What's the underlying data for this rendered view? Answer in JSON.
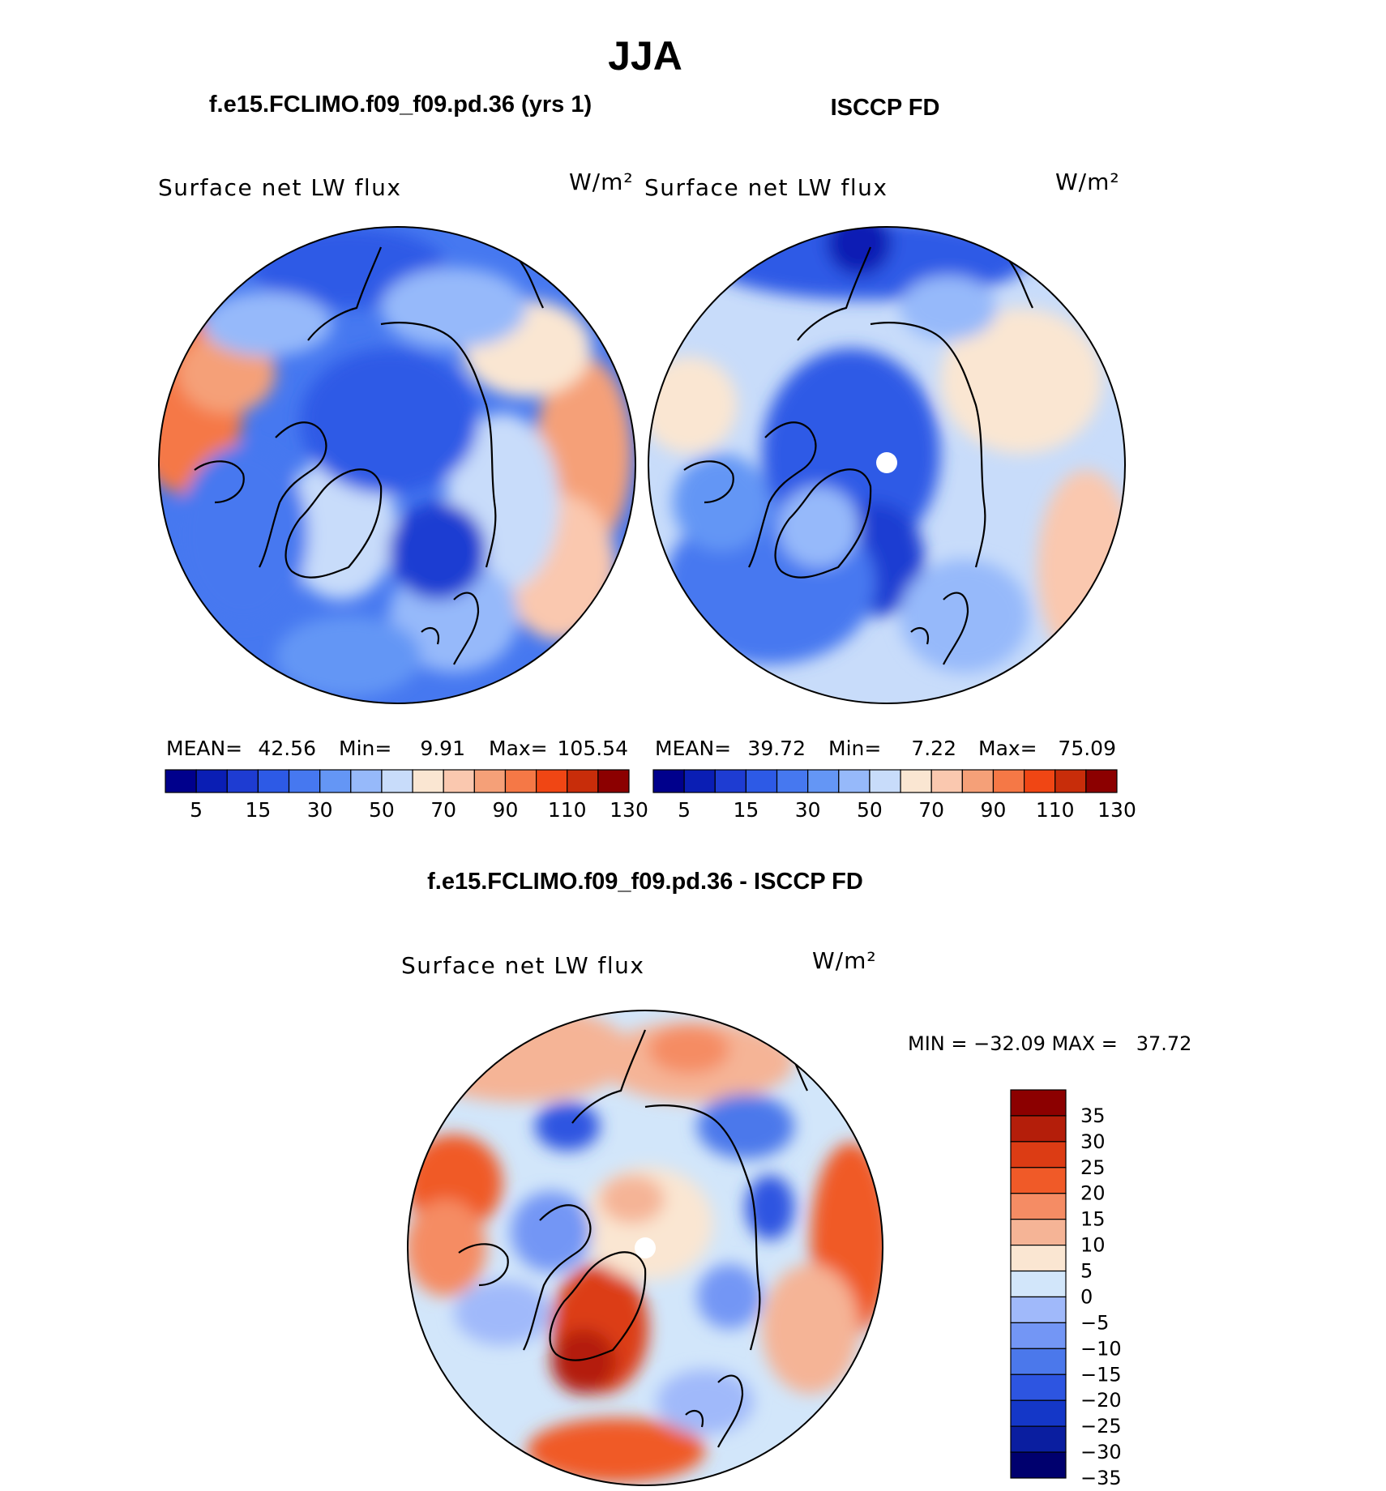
{
  "title": "JJA",
  "chart_data": [
    {
      "type": "heatmap",
      "projection": "north-polar-stereographic",
      "case_title": "f.e15.FCLIMO.f09_f09.pd.36 (yrs 1)",
      "variable": "Surface net LW flux",
      "units": "W/m²",
      "stats": {
        "mean_label": "MEAN=",
        "mean": "42.56",
        "min_label": "Min=",
        "min": "9.91",
        "max_label": "Max=",
        "max": "105.54"
      },
      "colorbar": {
        "levels": [
          5,
          10,
          15,
          20,
          30,
          40,
          50,
          60,
          70,
          80,
          90,
          100,
          110,
          120,
          130
        ],
        "tick_labels": [
          "5",
          "15",
          "30",
          "50",
          "70",
          "90",
          "110",
          "130"
        ]
      }
    },
    {
      "type": "heatmap",
      "projection": "north-polar-stereographic",
      "case_title": "ISCCP FD",
      "variable": "Surface net LW flux",
      "units": "W/m²",
      "stats": {
        "mean_label": "MEAN=",
        "mean": "39.72",
        "min_label": "Min=",
        "min": "7.22",
        "max_label": "Max=",
        "max": "75.09"
      },
      "colorbar": {
        "levels": [
          5,
          10,
          15,
          20,
          30,
          40,
          50,
          60,
          70,
          80,
          90,
          100,
          110,
          120,
          130
        ],
        "tick_labels": [
          "5",
          "15",
          "30",
          "50",
          "70",
          "90",
          "110",
          "130"
        ]
      }
    },
    {
      "type": "heatmap",
      "projection": "north-polar-stereographic",
      "case_title": "f.e15.FCLIMO.f09_f09.pd.36 - ISCCP FD",
      "variable": "Surface net LW flux",
      "units": "W/m²",
      "stats_text": "MIN = −32.09 MAX =   37.72",
      "colorbar": {
        "levels": [
          -35,
          -30,
          -25,
          -20,
          -15,
          -10,
          -5,
          0,
          5,
          10,
          15,
          20,
          25,
          30,
          35
        ],
        "tick_labels": [
          "35",
          "30",
          "25",
          "20",
          "15",
          "10",
          "5",
          "0",
          "−5",
          "−10",
          "−15",
          "−20",
          "−25",
          "−30",
          "−35"
        ]
      }
    }
  ],
  "palette": {
    "abs": [
      "#00008c",
      "#0a1eb4",
      "#1e3cd2",
      "#2d5ae6",
      "#4678f0",
      "#6496f5",
      "#96b9fa",
      "#c8dcfa",
      "#fae6d2",
      "#fac8af",
      "#f5a078",
      "#f57846",
      "#f04614",
      "#c82d0a",
      "#8c0000"
    ],
    "diff": [
      "#00006e",
      "#0a1ea0",
      "#1437c8",
      "#2d55e1",
      "#4b78eb",
      "#7396f5",
      "#a0b9fa",
      "#d2e6fa",
      "#fae6d2",
      "#f5b496",
      "#f58c64",
      "#f05a28",
      "#dc3c14",
      "#b41e0a",
      "#8c0000"
    ],
    "coast": "#000000"
  }
}
